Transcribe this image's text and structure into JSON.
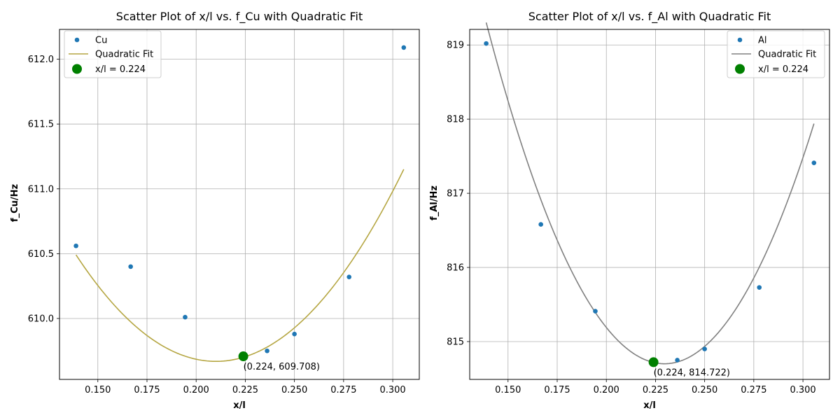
{
  "chart_data": [
    {
      "type": "scatter",
      "title": "Scatter Plot of x/l vs. f_Cu with Quadratic Fit",
      "xlabel": "x/l",
      "ylabel": "f_Cu/Hz",
      "xlim": [
        0.1305,
        0.3135
      ],
      "ylim": [
        609.53,
        612.23
      ],
      "xticks": [
        0.15,
        0.175,
        0.2,
        0.225,
        0.25,
        0.275,
        0.3
      ],
      "xtick_labels": [
        "0.150",
        "0.175",
        "0.200",
        "0.225",
        "0.250",
        "0.275",
        "0.300"
      ],
      "yticks": [
        610.0,
        610.5,
        611.0,
        611.5,
        612.0
      ],
      "ytick_labels": [
        "610.0",
        "610.5",
        "611.0",
        "611.5",
        "612.0"
      ],
      "grid": true,
      "legend_position": "top-left",
      "series": [
        {
          "name": "Cu",
          "kind": "scatter",
          "color": "#1f77b4",
          "x": [
            0.1389,
            0.1667,
            0.1944,
            0.2361,
            0.25,
            0.2778,
            0.3056
          ],
          "y": [
            610.56,
            610.4,
            610.01,
            609.75,
            609.88,
            610.32,
            612.09
          ]
        },
        {
          "name": "Quadratic Fit",
          "kind": "line",
          "color": "#b5a642",
          "coefficients": [
            162.29,
            -68.18,
            616.83
          ],
          "x_range": [
            0.1389,
            0.3056
          ]
        },
        {
          "name": "x/l = 0.224",
          "kind": "marker",
          "color": "#008000",
          "x": [
            0.224
          ],
          "y": [
            609.708
          ]
        }
      ],
      "annotations": [
        {
          "text": "(0.224, 609.708)",
          "x": 0.224,
          "y": 609.708
        }
      ]
    },
    {
      "type": "scatter",
      "title": "Scatter Plot of x/l vs. f_Al with Quadratic Fit",
      "xlabel": "x/l",
      "ylabel": "f_Al/Hz",
      "xlim": [
        0.1305,
        0.3135
      ],
      "ylim": [
        814.49,
        819.21
      ],
      "xticks": [
        0.15,
        0.175,
        0.2,
        0.225,
        0.25,
        0.275,
        0.3
      ],
      "xtick_labels": [
        "0.150",
        "0.175",
        "0.200",
        "0.225",
        "0.250",
        "0.275",
        "0.300"
      ],
      "yticks": [
        815,
        816,
        817,
        818,
        819
      ],
      "ytick_labels": [
        "815",
        "816",
        "817",
        "818",
        "819"
      ],
      "grid": true,
      "legend_position": "top-right",
      "series": [
        {
          "name": "Al",
          "kind": "scatter",
          "color": "#1f77b4",
          "x": [
            0.1389,
            0.1667,
            0.1944,
            0.2361,
            0.25,
            0.2778,
            0.3056
          ],
          "y": [
            819.02,
            816.58,
            815.41,
            814.75,
            814.9,
            815.73,
            817.41
          ]
        },
        {
          "name": "Quadratic Fit",
          "kind": "line",
          "color": "#808080",
          "coefficients": [
            560.0,
            -257.1,
            844.21
          ],
          "x_range": [
            0.1389,
            0.3056
          ]
        },
        {
          "name": "x/l = 0.224",
          "kind": "marker",
          "color": "#008000",
          "x": [
            0.224
          ],
          "y": [
            814.722
          ]
        }
      ],
      "annotations": [
        {
          "text": "(0.224, 814.722)",
          "x": 0.224,
          "y": 814.722
        }
      ]
    }
  ]
}
